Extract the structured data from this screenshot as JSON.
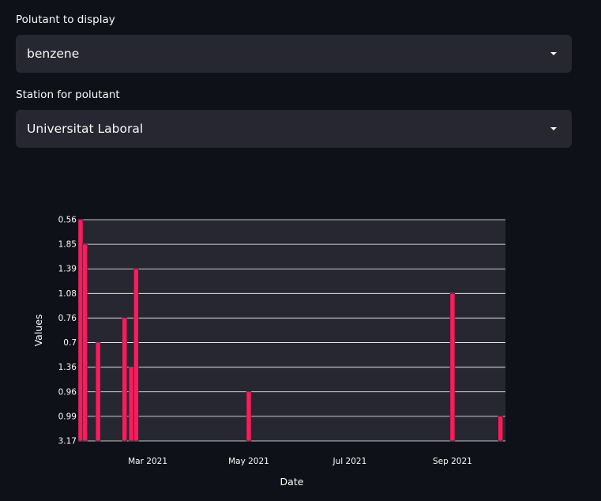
{
  "pollutant_select": {
    "label": "Polutant to display",
    "value": "benzene"
  },
  "station_select": {
    "label": "Station for polutant",
    "value": "Universitat Laboral"
  },
  "icons": {
    "dropdown": "caret-down-icon"
  },
  "colors": {
    "background": "#0e1117",
    "select_background": "#262730",
    "plot_background": "#262730",
    "bar": "#ff1a5e",
    "text": "#fafafa"
  },
  "chart_data": {
    "type": "bar",
    "xlabel": "Date",
    "ylabel": "Values",
    "x_axis_type": "date",
    "x_tick_labels": [
      {
        "date": "2021-03-01",
        "label": "Mar 2021"
      },
      {
        "date": "2021-05-01",
        "label": "May 2021"
      },
      {
        "date": "2021-07-01",
        "label": "Jul 2021"
      },
      {
        "date": "2021-09-01",
        "label": "Sep 2021"
      }
    ],
    "y_axis_type": "categorical",
    "y_categories": [
      "3.17",
      "0.99",
      "0.96",
      "1.36",
      "0.7",
      "0.76",
      "1.08",
      "1.39",
      "1.85",
      "0.56"
    ],
    "bars": [
      {
        "date": "2021-01-19",
        "value": "0.56"
      },
      {
        "date": "2021-01-22",
        "value": "1.85"
      },
      {
        "date": "2021-01-30",
        "value": "0.7"
      },
      {
        "date": "2021-02-15",
        "value": "0.76"
      },
      {
        "date": "2021-02-19",
        "value": "1.36"
      },
      {
        "date": "2021-02-22",
        "value": "1.39"
      },
      {
        "date": "2021-05-01",
        "value": "0.96"
      },
      {
        "date": "2021-09-01",
        "value": "1.08"
      },
      {
        "date": "2021-09-30",
        "value": "0.99"
      }
    ],
    "x_domain": [
      "2021-01-18",
      "2021-10-03"
    ],
    "grid": true,
    "legend": "none"
  }
}
